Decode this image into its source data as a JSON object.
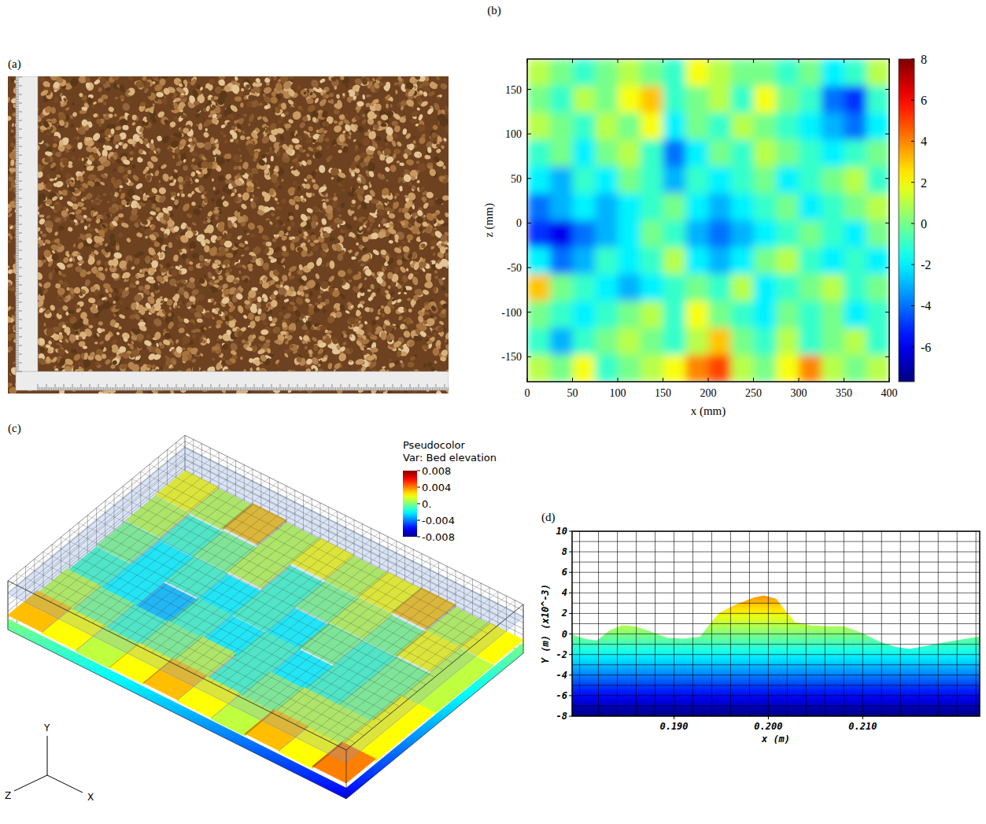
{
  "chart_data": [
    {
      "panel": "(a)",
      "type": "image"
    },
    {
      "panel": "(b)",
      "type": "heatmap",
      "xlabel": "x (mm)",
      "ylabel": "z (mm)",
      "xlim": [
        0,
        400
      ],
      "ylim": [
        -178,
        184
      ],
      "xticks": [
        0,
        50,
        100,
        150,
        200,
        250,
        300,
        350,
        400
      ],
      "yticks": [
        -150,
        -100,
        -50,
        0,
        50,
        100,
        150
      ],
      "colorbar_range": [
        -7.7,
        8
      ],
      "colorbar_ticks": [
        -6,
        -4,
        -2,
        0,
        2,
        4,
        6,
        8
      ],
      "cells": [
        [
          1,
          0,
          -1,
          0,
          1,
          0,
          -1,
          2,
          1,
          0,
          0,
          -1,
          0,
          -2,
          -1,
          1
        ],
        [
          0,
          -1,
          1,
          0,
          2,
          3,
          -1,
          0,
          1,
          -1,
          2,
          0,
          -1,
          -4,
          -5,
          -1
        ],
        [
          1,
          0,
          -1,
          1,
          0,
          2,
          -2,
          0,
          -1,
          1,
          0,
          -1,
          -2,
          -3,
          -4,
          -2
        ],
        [
          -1,
          0,
          -2,
          0,
          1,
          -1,
          -4,
          -2,
          0,
          -1,
          1,
          0,
          -1,
          -2,
          -1,
          0
        ],
        [
          -2,
          -3,
          -1,
          -2,
          0,
          -1,
          -3,
          -1,
          -2,
          -1,
          0,
          -2,
          -1,
          0,
          1,
          -1
        ],
        [
          -4,
          -3,
          -2,
          -3,
          -2,
          -1,
          0,
          -2,
          -3,
          -2,
          -1,
          0,
          -2,
          -1,
          0,
          1
        ],
        [
          -5,
          -6,
          -4,
          -3,
          -2,
          0,
          -1,
          -3,
          -4,
          -3,
          -2,
          -1,
          0,
          -1,
          -2,
          0
        ],
        [
          -2,
          -4,
          -3,
          -1,
          -2,
          -1,
          1,
          -2,
          -3,
          -2,
          0,
          1,
          -1,
          -2,
          -1,
          -2
        ],
        [
          3,
          0,
          -1,
          -2,
          -3,
          -2,
          -1,
          0,
          -1,
          1,
          -2,
          -1,
          0,
          1,
          -1,
          0
        ],
        [
          0,
          -1,
          -2,
          -1,
          0,
          1,
          -1,
          2,
          0,
          -1,
          -2,
          0,
          -1,
          0,
          -2,
          -1
        ],
        [
          -1,
          -3,
          -1,
          0,
          1,
          0,
          -1,
          1,
          3,
          0,
          -1,
          1,
          -1,
          0,
          1,
          -1
        ],
        [
          1,
          0,
          2,
          -1,
          0,
          1,
          2,
          4,
          5,
          1,
          0,
          2,
          4,
          1,
          0,
          1
        ]
      ]
    },
    {
      "panel": "(c)",
      "type": "surface",
      "title": "Pseudocolor",
      "subtitle": "Var: Bed elevation",
      "colorbar_range": [
        -0.008,
        0.008
      ],
      "colorbar_ticks": [
        -0.008,
        -0.004,
        {
          "value": 0,
          "label": "0."
        },
        0.004,
        0.008
      ],
      "axis_labels": [
        "Y",
        "Z",
        "X"
      ],
      "cells": [
        [
          0.002,
          0.001,
          0.003,
          0.001,
          0.002,
          0.001,
          0.002,
          0.003,
          0.001,
          0.002
        ],
        [
          0.001,
          -0.001,
          0,
          0.001,
          -0.001,
          0,
          0.001,
          0,
          0.002,
          0.001
        ],
        [
          0,
          -0.002,
          -0.001,
          -0.002,
          -0.001,
          -0.002,
          0,
          -0.001,
          0,
          0.001
        ],
        [
          -0.001,
          -0.002,
          -0.003,
          -0.001,
          -0.002,
          -0.001,
          -0.002,
          -0.001,
          0,
          0.002
        ],
        [
          0.001,
          0,
          -0.001,
          0,
          0.001,
          -0.001,
          0,
          0.001,
          0.001,
          0.002
        ],
        [
          0.003,
          0.002,
          0.001,
          0.002,
          0.003,
          0.002,
          0.001,
          0.003,
          0.002,
          0.004
        ]
      ]
    },
    {
      "panel": "(d)",
      "type": "area",
      "xlabel": "x (m)",
      "ylabel": "Y (m) (x10^-3)",
      "xlim": [
        0.1792,
        0.2224
      ],
      "ylim": [
        -8,
        10
      ],
      "xticks": [
        {
          "value": 0.19,
          "label": "0.190"
        },
        {
          "value": 0.2,
          "label": "0.200"
        },
        {
          "value": 0.21,
          "label": "0.210"
        }
      ],
      "yticks": [
        -8,
        -6,
        -4,
        -2,
        0,
        2,
        4,
        6,
        8,
        10
      ],
      "grid": true,
      "x_gridlines": [
        0.18,
        0.182,
        0.184,
        0.186,
        0.188,
        0.19,
        0.192,
        0.194,
        0.196,
        0.198,
        0.2,
        0.202,
        0.204,
        0.206,
        0.208,
        0.21,
        0.212,
        0.214,
        0.216,
        0.218,
        0.22,
        0.222
      ],
      "y_gridlines": [
        -8,
        -7,
        -6,
        -5,
        -4,
        -3,
        -2,
        -1,
        0,
        1,
        2,
        3,
        4,
        5,
        6,
        7,
        8,
        9,
        10
      ],
      "x": [
        0.1792,
        0.1805,
        0.1818,
        0.1832,
        0.1845,
        0.1858,
        0.1875,
        0.1892,
        0.191,
        0.1928,
        0.1938,
        0.1948,
        0.1965,
        0.1985,
        0.1995,
        0.2008,
        0.2018,
        0.2028,
        0.2045,
        0.2065,
        0.208,
        0.2098,
        0.2118,
        0.2135,
        0.215,
        0.2168,
        0.219,
        0.221,
        0.2224
      ],
      "values": [
        -0.1,
        -0.5,
        -0.7,
        0.3,
        0.8,
        0.7,
        0.2,
        -0.4,
        -0.5,
        -0.3,
        0.9,
        2.0,
        2.8,
        3.5,
        3.7,
        3.4,
        2.2,
        1.1,
        0.8,
        0.7,
        0.7,
        0.1,
        -0.8,
        -1.3,
        -1.5,
        -1.2,
        -0.8,
        -0.5,
        -0.3
      ]
    }
  ]
}
